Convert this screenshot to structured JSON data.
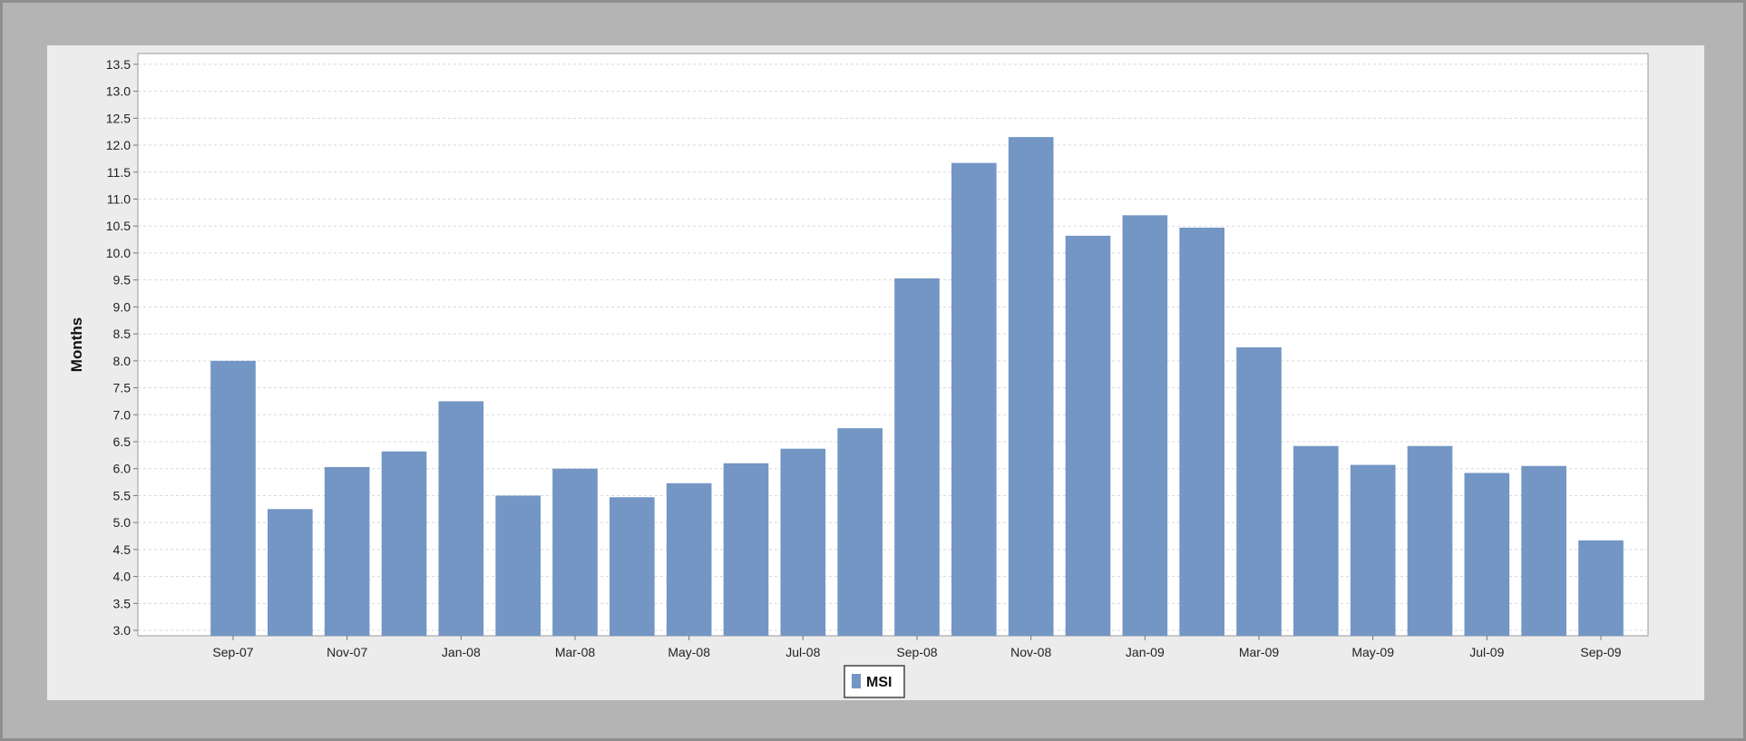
{
  "chart_data": {
    "type": "bar",
    "ylabel": "Months",
    "xlabel": "",
    "ylim": [
      2.9,
      13.7
    ],
    "ytick_step": 0.5,
    "ytick_min": 3.0,
    "ytick_max": 13.5,
    "grid": true,
    "legend_position": "bottom-center",
    "categories": [
      "Sep-07",
      "Oct-07",
      "Nov-07",
      "Dec-07",
      "Jan-08",
      "Feb-08",
      "Mar-08",
      "Apr-08",
      "May-08",
      "Jun-08",
      "Jul-08",
      "Aug-08",
      "Sep-08",
      "Oct-08",
      "Nov-08",
      "Dec-08",
      "Jan-09",
      "Feb-09",
      "Mar-09",
      "Apr-09",
      "May-09",
      "Jun-09",
      "Jul-09",
      "Aug-09",
      "Sep-09"
    ],
    "x_tick_labels": [
      "Sep-07",
      "",
      "Nov-07",
      "",
      "Jan-08",
      "",
      "Mar-08",
      "",
      "May-08",
      "",
      "Jul-08",
      "",
      "Sep-08",
      "",
      "Nov-08",
      "",
      "Jan-09",
      "",
      "Mar-09",
      "",
      "May-09",
      "",
      "Jul-09",
      "",
      "Sep-09"
    ],
    "series": [
      {
        "name": "MSI",
        "color": "#7396c4",
        "values": [
          8.0,
          5.25,
          6.03,
          6.32,
          7.25,
          5.5,
          6.0,
          5.47,
          5.73,
          6.1,
          6.37,
          6.75,
          9.53,
          11.67,
          12.15,
          10.32,
          10.7,
          10.47,
          8.25,
          6.42,
          6.07,
          6.42,
          5.92,
          6.05,
          4.67
        ]
      }
    ]
  }
}
